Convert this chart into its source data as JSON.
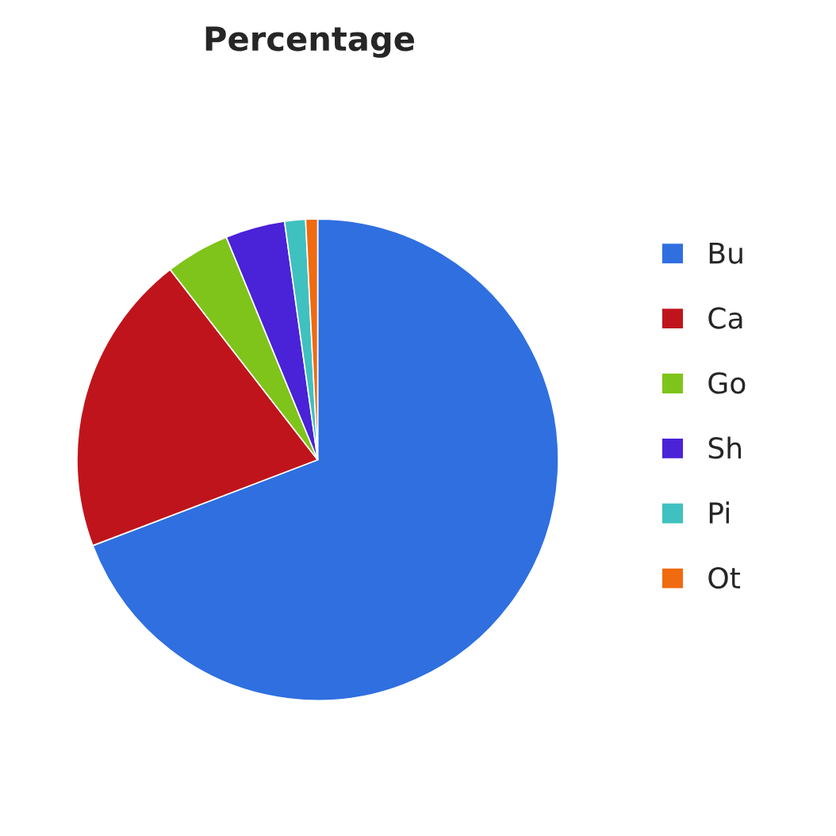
{
  "chart_data": {
    "type": "pie",
    "title": "Percentage",
    "categories": [
      "Bu",
      "Ca",
      "Go",
      "Sh",
      "Pi",
      "Ot"
    ],
    "values": [
      69.2,
      20.3,
      4.3,
      4.0,
      1.4,
      0.8
    ],
    "colors": [
      "#2f6fe0",
      "#c0141c",
      "#7fc41a",
      "#4a22d8",
      "#3fc1c0",
      "#f06a10"
    ],
    "legend": "right"
  }
}
